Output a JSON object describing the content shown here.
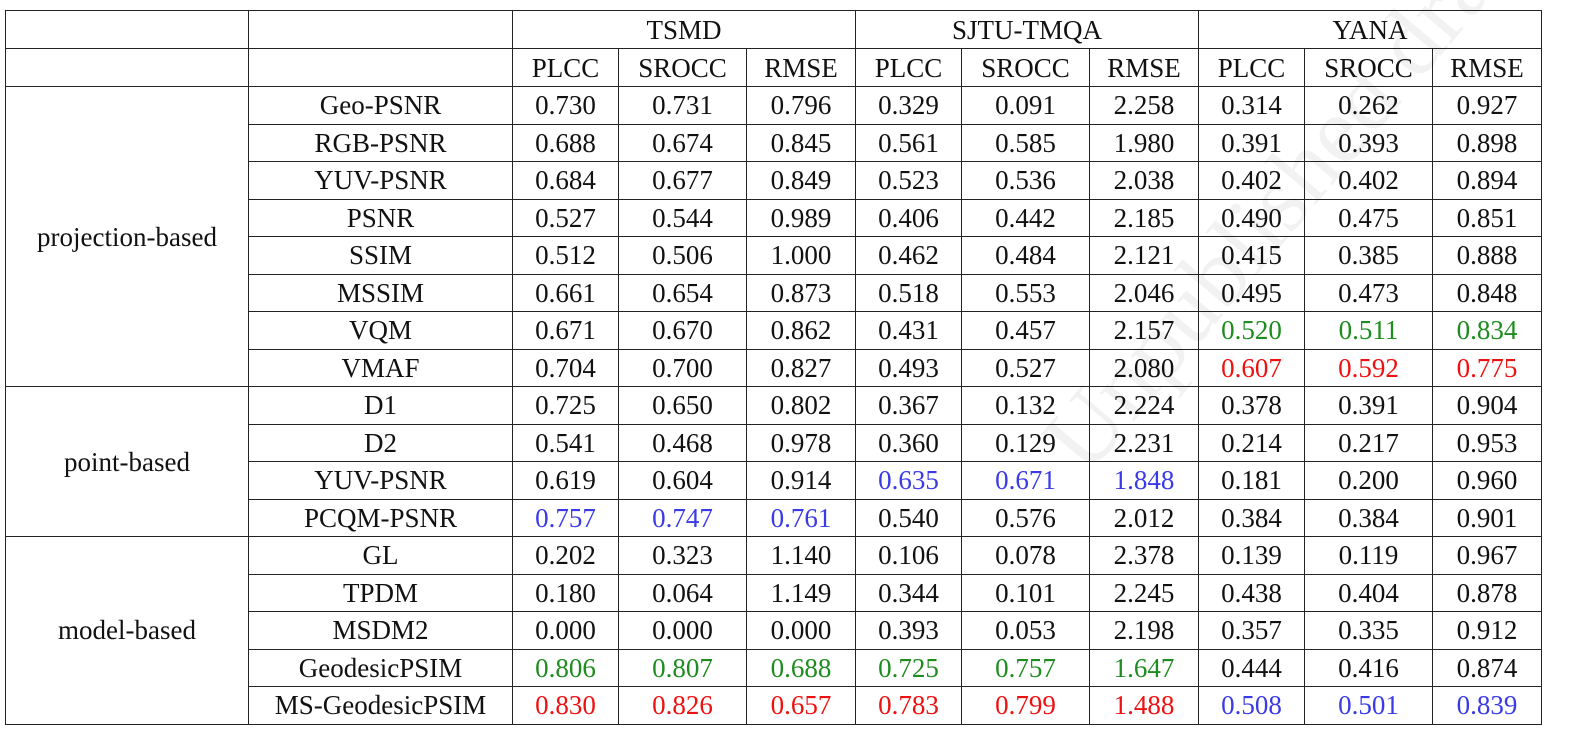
{
  "datasets": [
    "TSMD",
    "SJTU-TMQA",
    "YANA"
  ],
  "metrics": [
    "PLCC",
    "SROCC",
    "RMSE"
  ],
  "colors": {
    "best": "#ee1111",
    "second": "#1e8c1e",
    "third": "#3a3ae6"
  },
  "groups": [
    {
      "name": "projection-based",
      "rows": [
        {
          "method": "Geo-PSNR",
          "values": [
            "0.730",
            "0.731",
            "0.796",
            "0.329",
            "0.091",
            "2.258",
            "0.314",
            "0.262",
            "0.927"
          ],
          "styles": [
            "",
            "",
            "",
            "",
            "",
            "",
            "",
            "",
            ""
          ]
        },
        {
          "method": "RGB-PSNR",
          "values": [
            "0.688",
            "0.674",
            "0.845",
            "0.561",
            "0.585",
            "1.980",
            "0.391",
            "0.393",
            "0.898"
          ],
          "styles": [
            "",
            "",
            "",
            "",
            "",
            "",
            "",
            "",
            ""
          ]
        },
        {
          "method": "YUV-PSNR",
          "values": [
            "0.684",
            "0.677",
            "0.849",
            "0.523",
            "0.536",
            "2.038",
            "0.402",
            "0.402",
            "0.894"
          ],
          "styles": [
            "",
            "",
            "",
            "",
            "",
            "",
            "",
            "",
            ""
          ]
        },
        {
          "method": "PSNR",
          "values": [
            "0.527",
            "0.544",
            "0.989",
            "0.406",
            "0.442",
            "2.185",
            "0.490",
            "0.475",
            "0.851"
          ],
          "styles": [
            "",
            "",
            "",
            "",
            "",
            "",
            "",
            "",
            ""
          ]
        },
        {
          "method": "SSIM",
          "values": [
            "0.512",
            "0.506",
            "1.000",
            "0.462",
            "0.484",
            "2.121",
            "0.415",
            "0.385",
            "0.888"
          ],
          "styles": [
            "",
            "",
            "",
            "",
            "",
            "",
            "",
            "",
            ""
          ]
        },
        {
          "method": "MSSIM",
          "values": [
            "0.661",
            "0.654",
            "0.873",
            "0.518",
            "0.553",
            "2.046",
            "0.495",
            "0.473",
            "0.848"
          ],
          "styles": [
            "",
            "",
            "",
            "",
            "",
            "",
            "",
            "",
            ""
          ]
        },
        {
          "method": "VQM",
          "values": [
            "0.671",
            "0.670",
            "0.862",
            "0.431",
            "0.457",
            "2.157",
            "0.520",
            "0.511",
            "0.834"
          ],
          "styles": [
            "",
            "",
            "",
            "",
            "",
            "",
            "green",
            "green",
            "green"
          ]
        },
        {
          "method": "VMAF",
          "values": [
            "0.704",
            "0.700",
            "0.827",
            "0.493",
            "0.527",
            "2.080",
            "0.607",
            "0.592",
            "0.775"
          ],
          "styles": [
            "",
            "",
            "",
            "",
            "",
            "",
            "red",
            "red",
            "red"
          ]
        }
      ]
    },
    {
      "name": "point-based",
      "rows": [
        {
          "method": "D1",
          "values": [
            "0.725",
            "0.650",
            "0.802",
            "0.367",
            "0.132",
            "2.224",
            "0.378",
            "0.391",
            "0.904"
          ],
          "styles": [
            "",
            "",
            "",
            "",
            "",
            "",
            "",
            "",
            ""
          ]
        },
        {
          "method": "D2",
          "values": [
            "0.541",
            "0.468",
            "0.978",
            "0.360",
            "0.129",
            "2.231",
            "0.214",
            "0.217",
            "0.953"
          ],
          "styles": [
            "",
            "",
            "",
            "",
            "",
            "",
            "",
            "",
            ""
          ]
        },
        {
          "method": "YUV-PSNR",
          "values": [
            "0.619",
            "0.604",
            "0.914",
            "0.635",
            "0.671",
            "1.848",
            "0.181",
            "0.200",
            "0.960"
          ],
          "styles": [
            "",
            "",
            "",
            "blue",
            "blue",
            "blue",
            "",
            "",
            ""
          ]
        },
        {
          "method": "PCQM-PSNR",
          "values": [
            "0.757",
            "0.747",
            "0.761",
            "0.540",
            "0.576",
            "2.012",
            "0.384",
            "0.384",
            "0.901"
          ],
          "styles": [
            "blue",
            "blue",
            "blue",
            "",
            "",
            "",
            "",
            "",
            ""
          ]
        }
      ]
    },
    {
      "name": "model-based",
      "rows": [
        {
          "method": "GL",
          "values": [
            "0.202",
            "0.323",
            "1.140",
            "0.106",
            "0.078",
            "2.378",
            "0.139",
            "0.119",
            "0.967"
          ],
          "styles": [
            "",
            "",
            "",
            "",
            "",
            "",
            "",
            "",
            ""
          ]
        },
        {
          "method": "TPDM",
          "values": [
            "0.180",
            "0.064",
            "1.149",
            "0.344",
            "0.101",
            "2.245",
            "0.438",
            "0.404",
            "0.878"
          ],
          "styles": [
            "",
            "",
            "",
            "",
            "",
            "",
            "",
            "",
            ""
          ]
        },
        {
          "method": "MSDM2",
          "values": [
            "0.000",
            "0.000",
            "0.000",
            "0.393",
            "0.053",
            "2.198",
            "0.357",
            "0.335",
            "0.912"
          ],
          "styles": [
            "",
            "",
            "",
            "",
            "",
            "",
            "",
            "",
            ""
          ]
        },
        {
          "method": "GeodesicPSIM",
          "values": [
            "0.806",
            "0.807",
            "0.688",
            "0.725",
            "0.757",
            "1.647",
            "0.444",
            "0.416",
            "0.874"
          ],
          "styles": [
            "green",
            "green",
            "green",
            "green",
            "green",
            "green",
            "",
            "",
            ""
          ]
        },
        {
          "method": "MS-GeodesicPSIM",
          "values": [
            "0.830",
            "0.826",
            "0.657",
            "0.783",
            "0.799",
            "1.488",
            "0.508",
            "0.501",
            "0.839"
          ],
          "styles": [
            "red",
            "red",
            "red",
            "red",
            "red",
            "red",
            "blue",
            "blue",
            "blue"
          ]
        }
      ]
    }
  ]
}
